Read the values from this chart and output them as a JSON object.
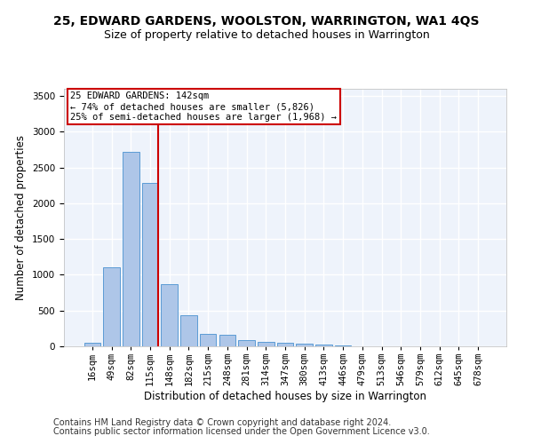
{
  "title": "25, EDWARD GARDENS, WOOLSTON, WARRINGTON, WA1 4QS",
  "subtitle": "Size of property relative to detached houses in Warrington",
  "xlabel": "Distribution of detached houses by size in Warrington",
  "ylabel": "Number of detached properties",
  "categories": [
    "16sqm",
    "49sqm",
    "82sqm",
    "115sqm",
    "148sqm",
    "182sqm",
    "215sqm",
    "248sqm",
    "281sqm",
    "314sqm",
    "347sqm",
    "380sqm",
    "413sqm",
    "446sqm",
    "479sqm",
    "513sqm",
    "546sqm",
    "579sqm",
    "612sqm",
    "645sqm",
    "678sqm"
  ],
  "values": [
    50,
    1100,
    2720,
    2280,
    870,
    430,
    170,
    165,
    90,
    60,
    50,
    35,
    30,
    15,
    0,
    0,
    0,
    0,
    0,
    0,
    0
  ],
  "bar_color": "#aec6e8",
  "bar_edge_color": "#5b9bd5",
  "background_color": "#eef3fb",
  "grid_color": "#ffffff",
  "annotation_text": "25 EDWARD GARDENS: 142sqm\n← 74% of detached houses are smaller (5,826)\n25% of semi-detached houses are larger (1,968) →",
  "vline_pos": 3.43,
  "vline_color": "#cc0000",
  "box_color": "#cc0000",
  "ylim": [
    0,
    3600
  ],
  "yticks": [
    0,
    500,
    1000,
    1500,
    2000,
    2500,
    3000,
    3500
  ],
  "footer1": "Contains HM Land Registry data © Crown copyright and database right 2024.",
  "footer2": "Contains public sector information licensed under the Open Government Licence v3.0.",
  "title_fontsize": 10,
  "subtitle_fontsize": 9,
  "xlabel_fontsize": 8.5,
  "ylabel_fontsize": 8.5,
  "tick_fontsize": 7.5,
  "annotation_fontsize": 7.5,
  "footer_fontsize": 7
}
